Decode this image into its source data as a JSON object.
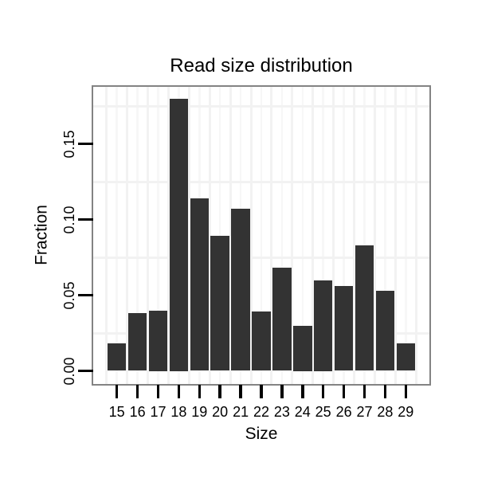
{
  "chart_data": {
    "type": "bar",
    "title": "Read size distribution",
    "xlabel": "Size",
    "ylabel": "Fraction",
    "categories": [
      "15",
      "16",
      "17",
      "18",
      "19",
      "20",
      "21",
      "22",
      "23",
      "24",
      "25",
      "26",
      "27",
      "28",
      "29"
    ],
    "values": [
      0.018,
      0.038,
      0.04,
      0.18,
      0.114,
      0.089,
      0.107,
      0.039,
      0.068,
      0.03,
      0.06,
      0.056,
      0.083,
      0.053,
      0.018
    ],
    "ytick_labels": [
      "0.00",
      "0.05",
      "0.10",
      "0.15"
    ],
    "ytick_values": [
      0.0,
      0.05,
      0.1,
      0.15
    ],
    "minor_gridlines_y": [
      0.025,
      0.075,
      0.125,
      0.175
    ],
    "ylim": [
      -0.009,
      0.187
    ],
    "grid": true,
    "legend_position": "none",
    "colors": {
      "bar": "#333333",
      "grid_minor": "#f2f2f2",
      "grid_center": "#f7f7f7",
      "panel_border": "#838383",
      "tick": "#000000",
      "text": "#000000",
      "background": "#ffffff"
    }
  }
}
